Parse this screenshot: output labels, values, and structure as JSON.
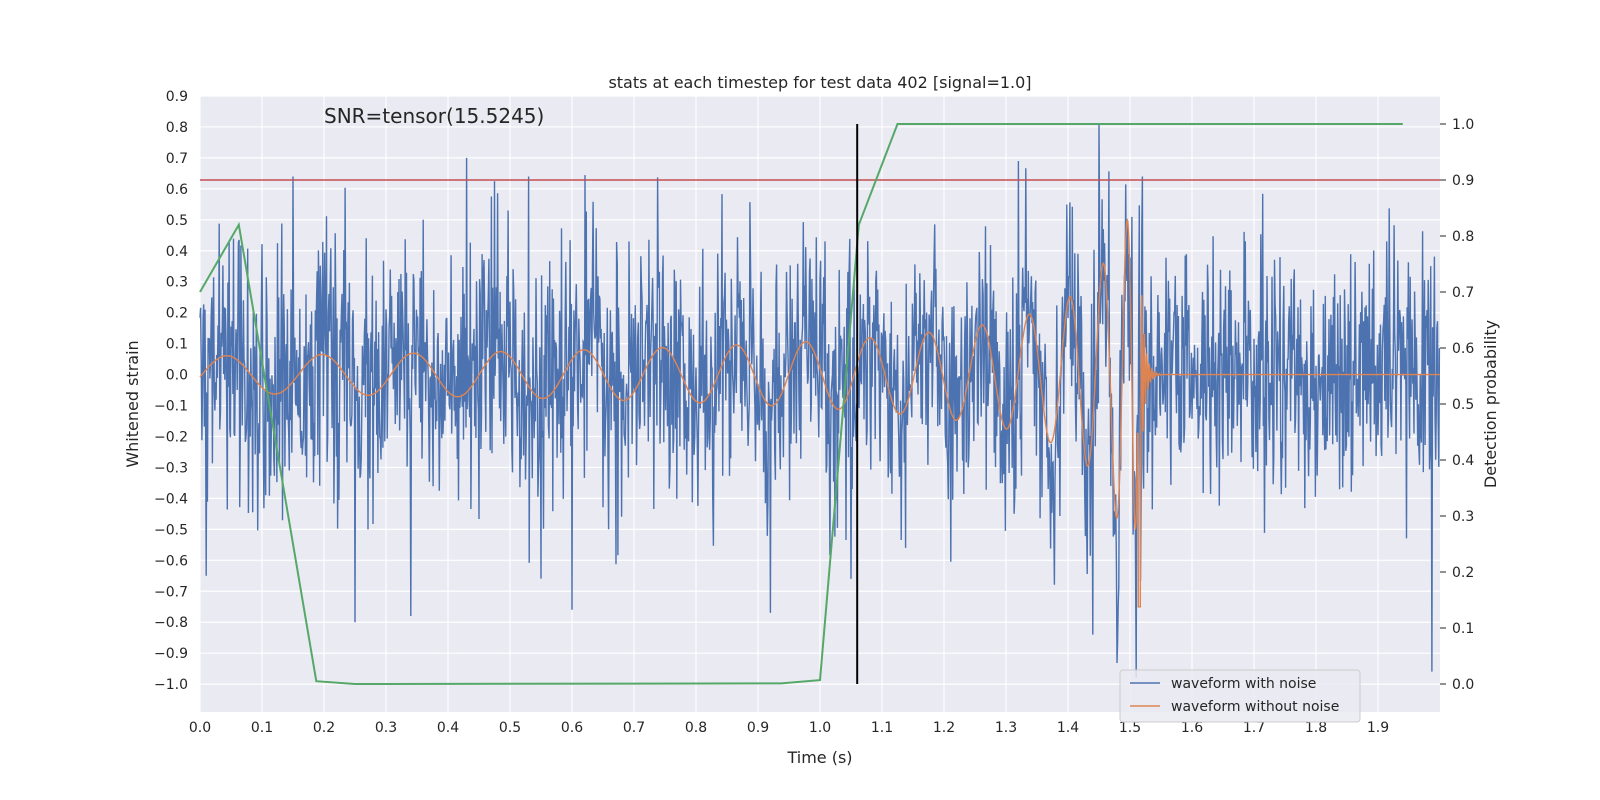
{
  "chart_data": {
    "type": "line",
    "title": "stats at each timestep for test data 402 [signal=1.0]",
    "xlabel": "Time (s)",
    "ylabel": "Whitened strain",
    "y2label": "Detection probability",
    "annotation": "SNR=tensor(15.5245)",
    "xlim": [
      0.0,
      2.0
    ],
    "ylim": [
      -1.09,
      0.9
    ],
    "y2lim": [
      -0.05,
      1.05
    ],
    "x_ticks": [
      "0.0",
      "0.1",
      "0.2",
      "0.3",
      "0.4",
      "0.5",
      "0.6",
      "0.7",
      "0.8",
      "0.9",
      "1.0",
      "1.1",
      "1.2",
      "1.3",
      "1.4",
      "1.5",
      "1.6",
      "1.7",
      "1.8",
      "1.9"
    ],
    "y_ticks": [
      "0.9",
      "0.8",
      "0.7",
      "0.6",
      "0.5",
      "0.4",
      "0.3",
      "0.2",
      "0.1",
      "0.0",
      "−0.1",
      "−0.2",
      "−0.3",
      "−0.4",
      "−0.5",
      "−0.6",
      "−0.7",
      "−0.8",
      "−0.9",
      "−1.0"
    ],
    "y2_ticks": [
      "1.0",
      "0.9",
      "0.8",
      "0.7",
      "0.6",
      "0.5",
      "0.4",
      "0.3",
      "0.2",
      "0.1",
      "0.0"
    ],
    "threshold": {
      "name": "detection threshold",
      "y2": 0.9,
      "color": "#c44e52"
    },
    "trigger_time": {
      "x": 1.06,
      "color": "#000000"
    },
    "series": [
      {
        "name": "waveform with noise",
        "color": "#4c72b0",
        "axis": "left",
        "style": "noise",
        "sigma": 0.2,
        "extremes": [
          {
            "x": 0.01,
            "y": -0.65
          },
          {
            "x": 0.15,
            "y": 0.64
          },
          {
            "x": 0.25,
            "y": -0.8
          },
          {
            "x": 0.34,
            "y": -0.78
          },
          {
            "x": 0.43,
            "y": 0.7
          },
          {
            "x": 0.53,
            "y": 0.64
          },
          {
            "x": 0.6,
            "y": -0.76
          },
          {
            "x": 0.92,
            "y": -0.77
          },
          {
            "x": 1.05,
            "y": -0.66
          },
          {
            "x": 1.32,
            "y": 0.69
          },
          {
            "x": 1.44,
            "y": -0.84
          },
          {
            "x": 1.45,
            "y": 0.81
          },
          {
            "x": 1.51,
            "y": -0.98
          },
          {
            "x": 1.52,
            "y": 0.64
          }
        ]
      },
      {
        "name": "waveform without noise",
        "color": "#dd8452",
        "axis": "left",
        "style": "chirp",
        "merger_time": 1.515,
        "start_amplitude": 0.06,
        "peak_amplitude": 0.5,
        "min_amplitude": -0.75
      },
      {
        "name": "detection probability",
        "color": "#55a868",
        "axis": "right",
        "x": [
          0.0,
          0.0625,
          0.1875,
          0.25,
          0.9375,
          1.0,
          1.0625,
          1.125,
          1.94
        ],
        "y": [
          0.7,
          0.82,
          0.005,
          0.0,
          0.001,
          0.007,
          0.82,
          1.0,
          1.0
        ]
      }
    ],
    "legend": {
      "position": "lower-right",
      "entries": [
        {
          "label": "waveform with noise",
          "color": "#4c72b0"
        },
        {
          "label": "waveform without noise",
          "color": "#dd8452"
        }
      ]
    }
  }
}
